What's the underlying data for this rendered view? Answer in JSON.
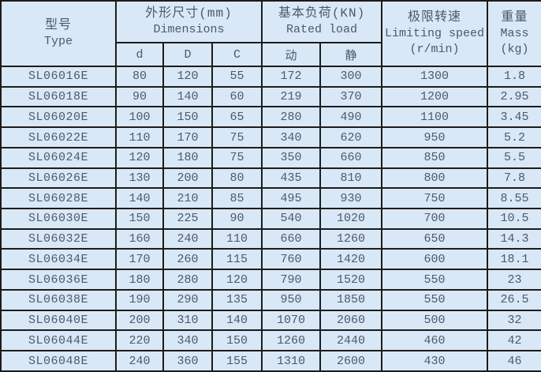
{
  "table": {
    "header": {
      "type": {
        "zh": "型号",
        "en": "Type"
      },
      "dimensions": {
        "zh": "外形尺寸(mm)",
        "en": "Dimensions",
        "sub": [
          "d",
          "D",
          "C"
        ]
      },
      "rated_load": {
        "zh": "基本负荷(KN)",
        "en": "Rated load",
        "sub": [
          "动",
          "静"
        ]
      },
      "limiting_speed": {
        "zh": "极限转速",
        "en": "Limiting speed",
        "unit": "(r/min)"
      },
      "mass": {
        "zh": "重量",
        "en": "Mass",
        "unit": "(kg)"
      }
    },
    "rows": [
      [
        "SL06016E",
        "80",
        "120",
        "55",
        "172",
        "300",
        "1300",
        "1.8"
      ],
      [
        "SL06018E",
        "90",
        "140",
        "60",
        "219",
        "370",
        "1200",
        "2.95"
      ],
      [
        "SL06020E",
        "100",
        "150",
        "65",
        "280",
        "490",
        "1100",
        "3.45"
      ],
      [
        "SL06022E",
        "110",
        "170",
        "75",
        "340",
        "620",
        "950",
        "5.2"
      ],
      [
        "SL06024E",
        "120",
        "180",
        "75",
        "350",
        "660",
        "850",
        "5.5"
      ],
      [
        "SL06026E",
        "130",
        "200",
        "80",
        "435",
        "810",
        "800",
        "7.8"
      ],
      [
        "SL06028E",
        "140",
        "210",
        "85",
        "495",
        "930",
        "750",
        "8.55"
      ],
      [
        "SL06030E",
        "150",
        "225",
        "90",
        "540",
        "1020",
        "700",
        "10.5"
      ],
      [
        "SL06032E",
        "160",
        "240",
        "110",
        "660",
        "1260",
        "650",
        "14.3"
      ],
      [
        "SL06034E",
        "170",
        "260",
        "115",
        "760",
        "1420",
        "600",
        "18.1"
      ],
      [
        "SL06036E",
        "180",
        "280",
        "120",
        "790",
        "1520",
        "550",
        "23"
      ],
      [
        "SL06038E",
        "190",
        "290",
        "135",
        "950",
        "1850",
        "550",
        "26.5"
      ],
      [
        "SL06040E",
        "200",
        "310",
        "140",
        "1070",
        "2060",
        "500",
        "32"
      ],
      [
        "SL06044E",
        "220",
        "340",
        "150",
        "1260",
        "2440",
        "460",
        "42"
      ],
      [
        "SL06048E",
        "240",
        "360",
        "155",
        "1310",
        "2600",
        "430",
        "46"
      ]
    ]
  },
  "colors": {
    "background": "#d9e8f7",
    "border": "#1c1c1c",
    "text": "#4b5a6b"
  }
}
